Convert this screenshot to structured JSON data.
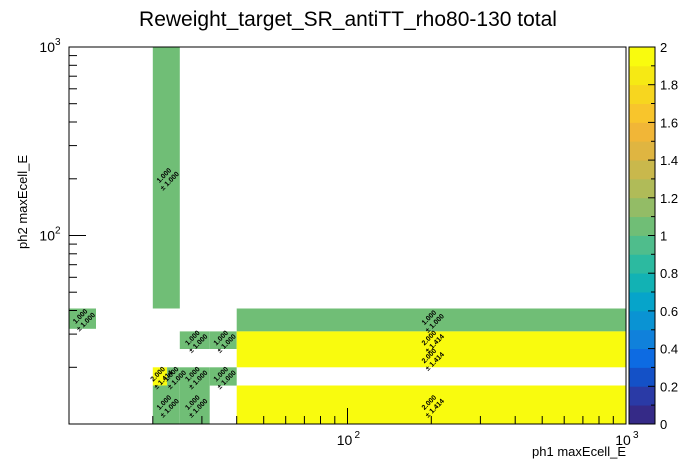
{
  "chart_data": {
    "type": "heatmap",
    "title": "Reweight_target_SR_antiTT_rho80-130 total",
    "xlabel": "ph1 maxEcell_E",
    "ylabel": "ph2 maxEcell_E",
    "x_scale": "log",
    "y_scale": "log",
    "xlim": [
      10,
      1000
    ],
    "ylim": [
      10,
      1000
    ],
    "x_tick_labels": [
      "10^2",
      "10^3"
    ],
    "y_tick_labels": [
      "10^2",
      "10^3"
    ],
    "z_range": [
      0,
      2
    ],
    "colorbar_ticks": [
      "0",
      "0.2",
      "0.4",
      "0.6",
      "0.8",
      "1",
      "1.2",
      "1.4",
      "1.6",
      "1.8",
      "2"
    ],
    "palette": [
      "#352a87",
      "#2a3aa6",
      "#1451c7",
      "#0d6be2",
      "#1081db",
      "#0a93d3",
      "#06a4ca",
      "#12b2b4",
      "#2cbaa0",
      "#4fbd8c",
      "#70be76",
      "#93bc66",
      "#b0bb58",
      "#c9b84c",
      "#dfb541",
      "#f1b637",
      "#f8c52c",
      "#f7d61f",
      "#f6e914",
      "#f9fb0e"
    ],
    "cells": [
      {
        "x": [
          20,
          25
        ],
        "y": [
          41,
          1000
        ],
        "value": 1.0,
        "error": 1.0,
        "label": "1.000",
        "err_label": "± 1.000"
      },
      {
        "x": [
          10,
          12.5
        ],
        "y": [
          32,
          41
        ],
        "value": 1.0,
        "error": 1.0,
        "label": "1.000",
        "err_label": "± 1.000"
      },
      {
        "x": [
          40,
          1000
        ],
        "y": [
          31,
          41
        ],
        "value": 1.0,
        "error": 1.0,
        "label": "1.000",
        "err_label": "± 1.000"
      },
      {
        "x": [
          25,
          32
        ],
        "y": [
          25,
          31
        ],
        "value": 1.0,
        "error": 1.0,
        "label": "1.000",
        "err_label": "± 1.000"
      },
      {
        "x": [
          32,
          40
        ],
        "y": [
          25,
          31
        ],
        "value": 1.0,
        "error": 1.0,
        "label": "1.000",
        "err_label": "± 1.000"
      },
      {
        "x": [
          40,
          1000
        ],
        "y": [
          25,
          31
        ],
        "value": 2.0,
        "error": 1.414,
        "label": "2.000",
        "err_label": "± 1.414"
      },
      {
        "x": [
          20,
          22.5
        ],
        "y": [
          16,
          20
        ],
        "value": 2.0,
        "error": 1.414,
        "label": "2.000",
        "err_label": "± 1.414"
      },
      {
        "x": [
          22.5,
          25
        ],
        "y": [
          16,
          20
        ],
        "value": 1.0,
        "error": 1.0,
        "label": "1.000",
        "err_label": "± 1.000"
      },
      {
        "x": [
          25,
          32
        ],
        "y": [
          16,
          20
        ],
        "value": 1.0,
        "error": 1.0,
        "label": "1.000",
        "err_label": "± 1.000"
      },
      {
        "x": [
          32,
          40
        ],
        "y": [
          16,
          20
        ],
        "value": 1.0,
        "error": 1.0,
        "label": "1.000",
        "err_label": "± 1.000"
      },
      {
        "x": [
          40,
          1000
        ],
        "y": [
          20,
          25
        ],
        "value": 2.0,
        "error": 1.414,
        "label": "2.000",
        "err_label": "± 1.414"
      },
      {
        "x": [
          20,
          25
        ],
        "y": [
          10,
          16
        ],
        "value": 1.0,
        "error": 1.0,
        "label": "1.000",
        "err_label": "± 1.000"
      },
      {
        "x": [
          25,
          32
        ],
        "y": [
          10,
          16
        ],
        "value": 1.0,
        "error": 1.0,
        "label": "1.000",
        "err_label": "± 1.000"
      },
      {
        "x": [
          40,
          1000
        ],
        "y": [
          10,
          16
        ],
        "value": 2.0,
        "error": 1.414,
        "label": "2.000",
        "err_label": "± 1.414"
      }
    ],
    "grid": false,
    "legend": "colorbar-right"
  }
}
